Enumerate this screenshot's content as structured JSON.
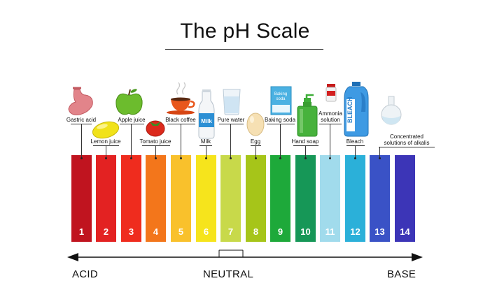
{
  "title": "The pH Scale",
  "scale": [
    {
      "value": "1",
      "color": "#c0141f"
    },
    {
      "value": "2",
      "color": "#e32222"
    },
    {
      "value": "3",
      "color": "#ef2c1e"
    },
    {
      "value": "4",
      "color": "#f3761b"
    },
    {
      "value": "5",
      "color": "#f9c12c"
    },
    {
      "value": "6",
      "color": "#f6e41c"
    },
    {
      "value": "7",
      "color": "#c8d94a"
    },
    {
      "value": "8",
      "color": "#a6c519"
    },
    {
      "value": "9",
      "color": "#1ea93a"
    },
    {
      "value": "10",
      "color": "#169757"
    },
    {
      "value": "11",
      "color": "#a1dbec"
    },
    {
      "value": "12",
      "color": "#2bb0d9"
    },
    {
      "value": "13",
      "color": "#3a52c6"
    },
    {
      "value": "14",
      "color": "#3c35b7"
    }
  ],
  "substances": [
    {
      "label": "Gastric acid",
      "icon": "stomach-icon"
    },
    {
      "label": "Lemon juice",
      "icon": "lemon-icon"
    },
    {
      "label": "Apple juice",
      "icon": "apple-icon"
    },
    {
      "label": "Tomato juice",
      "icon": "tomato-icon"
    },
    {
      "label": "Black coffee",
      "icon": "coffee-cup-icon"
    },
    {
      "label": "Milk",
      "icon": "milk-bottle-icon"
    },
    {
      "label": "Pure water",
      "icon": "water-glass-icon"
    },
    {
      "label": "Egg",
      "icon": "egg-icon"
    },
    {
      "label": "Baking soda",
      "icon": "baking-soda-box-icon"
    },
    {
      "label": "Hand soap",
      "icon": "soap-dispenser-icon"
    },
    {
      "label": "Ammonia\nsolution",
      "icon": "ammonia-bottle-icon"
    },
    {
      "label": "Bleach",
      "icon": "bleach-bottle-icon"
    },
    {
      "label": "Concentrated\nsolutions of alkalis",
      "icon": "flask-icon"
    }
  ],
  "icon_text": {
    "milk": "Milk",
    "baking_soda": "Baking\nsoda",
    "bleach": "BLEACH"
  },
  "axis": {
    "left": "ACID",
    "center": "NEUTRAL",
    "right": "BASE"
  }
}
